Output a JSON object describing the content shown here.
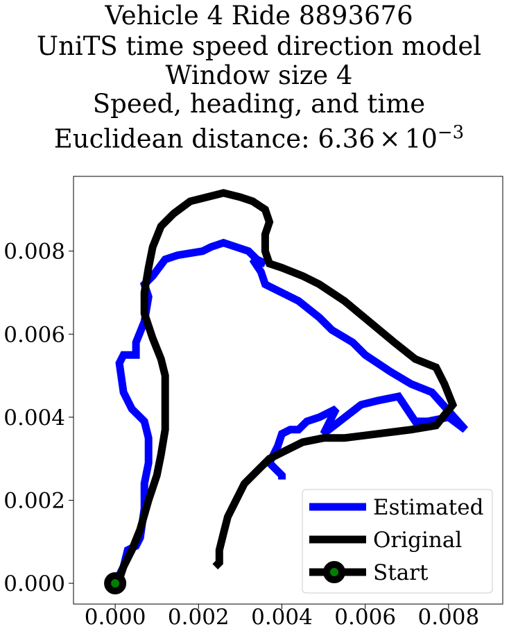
{
  "chart_data": {
    "type": "line",
    "title_lines": [
      "Vehicle 4 Ride 8893676",
      "UniTS time speed direction model",
      "Window size 4",
      "Speed, heading, and time",
      "Euclidean distance: "
    ],
    "title_math": {
      "mantissa": "6.36",
      "times": "×",
      "base": "10",
      "exponent": "−3"
    },
    "xlim": [
      -0.001,
      0.0093
    ],
    "ylim": [
      -0.0005,
      0.0098
    ],
    "xticks": [
      0.0,
      0.002,
      0.004,
      0.006,
      0.008
    ],
    "xtick_labels": [
      "0.000",
      "0.002",
      "0.004",
      "0.006",
      "0.008"
    ],
    "yticks": [
      0.0,
      0.002,
      0.004,
      0.006,
      0.008
    ],
    "ytick_labels": [
      "0.000",
      "0.002",
      "0.004",
      "0.006",
      "0.008"
    ],
    "grid": false,
    "legend_position": "lower-right",
    "series": [
      {
        "name": "Estimated",
        "color": "#0000ff",
        "points": [
          [
            0.0,
            0.0
          ],
          [
            0.0002,
            0.0004
          ],
          [
            0.0003,
            0.0008
          ],
          [
            0.0005,
            0.0009
          ],
          [
            0.0006,
            0.0011
          ],
          [
            0.0007,
            0.0018
          ],
          [
            0.0007,
            0.0024
          ],
          [
            0.0008,
            0.0029
          ],
          [
            0.0008,
            0.0035
          ],
          [
            0.0007,
            0.0039
          ],
          [
            0.0004,
            0.0042
          ],
          [
            0.0002,
            0.0046
          ],
          [
            0.0001,
            0.0053
          ],
          [
            0.0002,
            0.0055
          ],
          [
            0.0005,
            0.0055
          ],
          [
            0.0005,
            0.0058
          ],
          [
            0.0007,
            0.0063
          ],
          [
            0.0008,
            0.0069
          ],
          [
            0.0007,
            0.0072
          ],
          [
            0.0009,
            0.0074
          ],
          [
            0.0012,
            0.0078
          ],
          [
            0.0015,
            0.0079
          ],
          [
            0.0021,
            0.008
          ],
          [
            0.0023,
            0.0081
          ],
          [
            0.0026,
            0.0082
          ],
          [
            0.0029,
            0.0081
          ],
          [
            0.0032,
            0.008
          ],
          [
            0.0034,
            0.0078
          ],
          [
            0.0036,
            0.0077
          ],
          [
            0.0033,
            0.0078
          ],
          [
            0.0035,
            0.0075
          ],
          [
            0.0036,
            0.0072
          ],
          [
            0.004,
            0.007
          ],
          [
            0.0044,
            0.0068
          ],
          [
            0.0049,
            0.0064
          ],
          [
            0.0052,
            0.0061
          ],
          [
            0.0057,
            0.0058
          ],
          [
            0.006,
            0.0055
          ],
          [
            0.0066,
            0.0051
          ],
          [
            0.0071,
            0.0048
          ],
          [
            0.0076,
            0.0046
          ],
          [
            0.0084,
            0.0037
          ],
          [
            0.008,
            0.004
          ],
          [
            0.0075,
            0.0039
          ],
          [
            0.0072,
            0.0039
          ],
          [
            0.0068,
            0.0045
          ],
          [
            0.0063,
            0.0044
          ],
          [
            0.0059,
            0.0043
          ],
          [
            0.005,
            0.0036
          ],
          [
            0.0053,
            0.0042
          ],
          [
            0.0049,
            0.004
          ],
          [
            0.0046,
            0.0039
          ],
          [
            0.0044,
            0.0037
          ],
          [
            0.0042,
            0.0037
          ],
          [
            0.004,
            0.0036
          ],
          [
            0.0039,
            0.0033
          ],
          [
            0.0037,
            0.0029
          ],
          [
            0.004,
            0.0026
          ],
          [
            0.004,
            0.0025
          ]
        ]
      },
      {
        "name": "Original",
        "color": "#000000",
        "points": [
          [
            0.0,
            0.0
          ],
          [
            0.0001,
            0.0001
          ],
          [
            0.0002,
            0.0004
          ],
          [
            0.0004,
            0.0008
          ],
          [
            0.0006,
            0.0013
          ],
          [
            0.0008,
            0.002
          ],
          [
            0.001,
            0.0026
          ],
          [
            0.0011,
            0.0031
          ],
          [
            0.0012,
            0.0037
          ],
          [
            0.0012,
            0.0044
          ],
          [
            0.0012,
            0.005
          ],
          [
            0.0011,
            0.0054
          ],
          [
            0.0009,
            0.0059
          ],
          [
            0.0007,
            0.0065
          ],
          [
            0.0007,
            0.007
          ],
          [
            0.0008,
            0.0076
          ],
          [
            0.0009,
            0.0081
          ],
          [
            0.0011,
            0.0086
          ],
          [
            0.0014,
            0.0089
          ],
          [
            0.0018,
            0.0092
          ],
          [
            0.0022,
            0.0093
          ],
          [
            0.0026,
            0.0094
          ],
          [
            0.003,
            0.0093
          ],
          [
            0.0033,
            0.0092
          ],
          [
            0.0036,
            0.009
          ],
          [
            0.0037,
            0.0087
          ],
          [
            0.0036,
            0.0084
          ],
          [
            0.0036,
            0.008
          ],
          [
            0.0037,
            0.0077
          ],
          [
            0.004,
            0.0076
          ],
          [
            0.0045,
            0.0074
          ],
          [
            0.0049,
            0.0072
          ],
          [
            0.0055,
            0.0068
          ],
          [
            0.0061,
            0.0063
          ],
          [
            0.0067,
            0.0058
          ],
          [
            0.0072,
            0.0054
          ],
          [
            0.0077,
            0.0052
          ],
          [
            0.0079,
            0.0048
          ],
          [
            0.0081,
            0.0043
          ],
          [
            0.0077,
            0.0038
          ],
          [
            0.0071,
            0.0037
          ],
          [
            0.0063,
            0.0036
          ],
          [
            0.0055,
            0.0035
          ],
          [
            0.005,
            0.0035
          ],
          [
            0.0045,
            0.0034
          ],
          [
            0.0041,
            0.0032
          ],
          [
            0.0037,
            0.003
          ],
          [
            0.0034,
            0.0027
          ],
          [
            0.0031,
            0.0024
          ],
          [
            0.0029,
            0.002
          ],
          [
            0.0027,
            0.0016
          ],
          [
            0.0026,
            0.0012
          ],
          [
            0.0025,
            0.0008
          ],
          [
            0.0025,
            0.0005
          ],
          [
            0.0024,
            0.0004
          ]
        ]
      }
    ],
    "start_point": {
      "name": "Start",
      "x": 0.0,
      "y": 0.0,
      "edge_color": "#000000",
      "face_color": "#008000"
    },
    "legend": [
      {
        "label": "Estimated",
        "color": "#0000ff",
        "marker": false
      },
      {
        "label": "Original",
        "color": "#000000",
        "marker": false
      },
      {
        "label": "Start",
        "color": "#000000",
        "marker": true,
        "marker_face": "#008000"
      }
    ]
  }
}
